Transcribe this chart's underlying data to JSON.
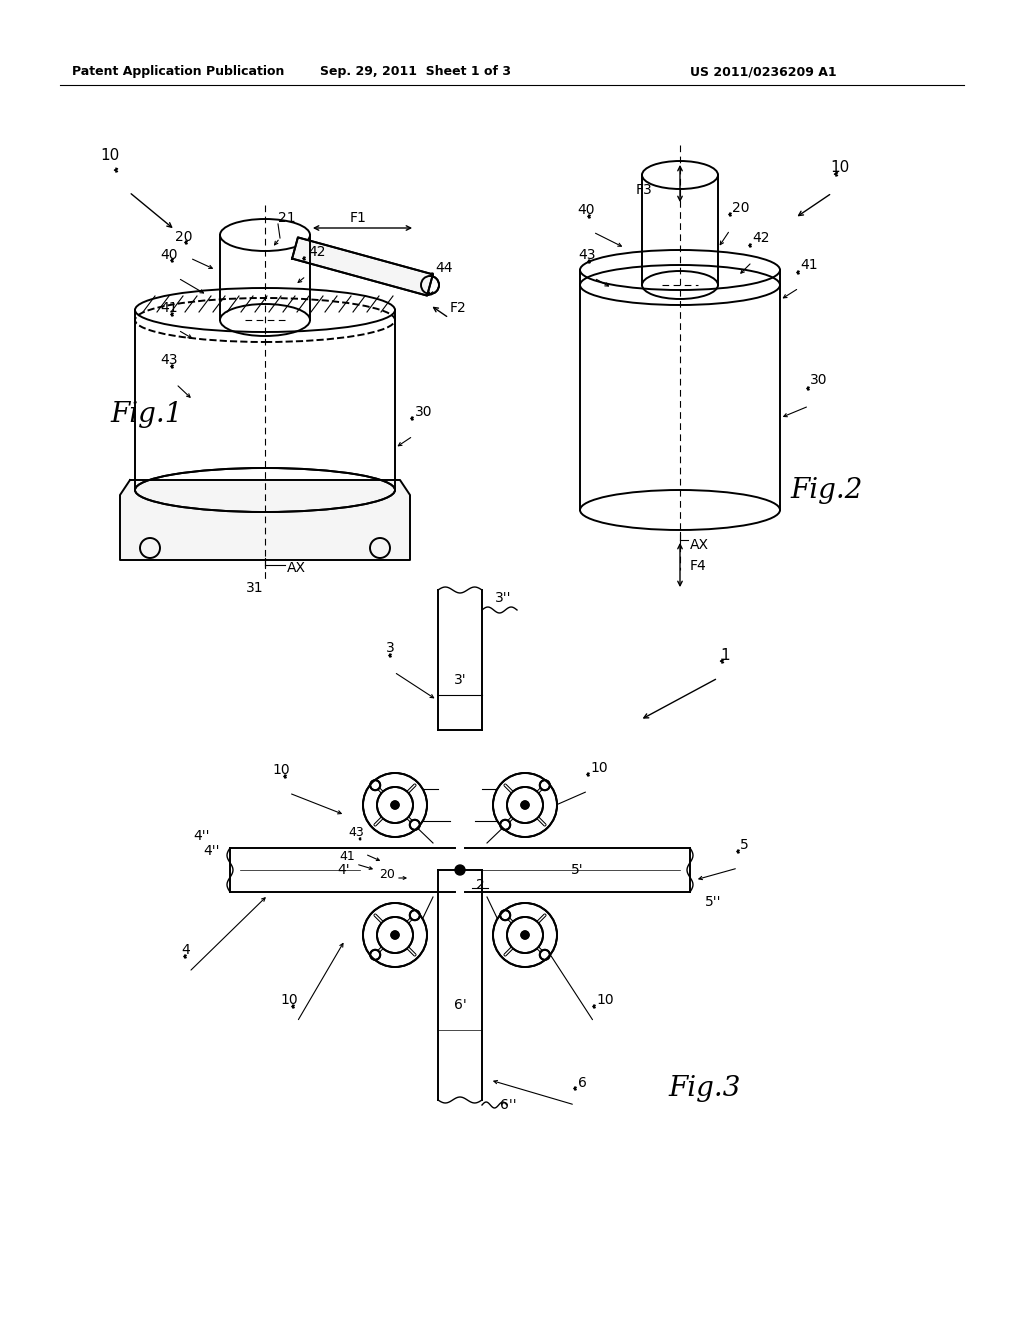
{
  "bg_color": "#ffffff",
  "line_color": "#000000",
  "lw": 1.4,
  "header_left": "Patent Application Publication",
  "header_center": "Sep. 29, 2011  Sheet 1 of 3",
  "header_right": "US 2011/0236209 A1"
}
